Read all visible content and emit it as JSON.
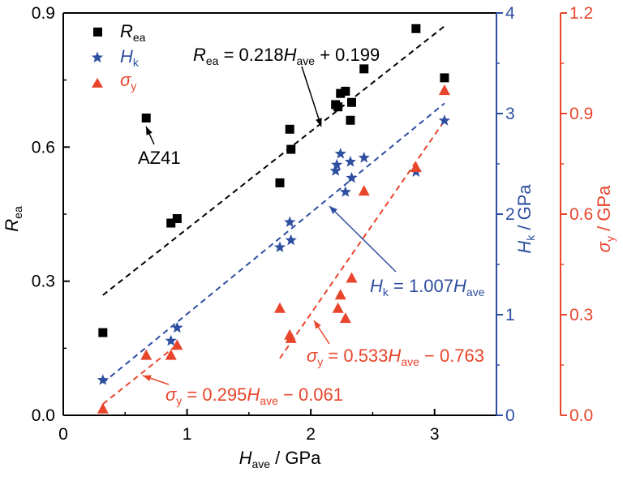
{
  "chart_data": {
    "type": "scatter",
    "x_axis": {
      "label_main": "H",
      "label_sub": "ave",
      "label_unit": " / GPa",
      "range": [
        0,
        3.5
      ],
      "ticks": [
        0,
        1,
        2,
        3
      ],
      "tick_labels": [
        "0",
        "1",
        "2",
        "3"
      ]
    },
    "y_axes": {
      "left": {
        "label_main": "R",
        "label_sub": "ea",
        "label_unit": "",
        "range": [
          0,
          0.9
        ],
        "ticks": [
          0,
          0.3,
          0.6,
          0.9
        ],
        "tick_labels": [
          "0.0",
          "0.3",
          "0.6",
          "0.9"
        ],
        "color": "#000000"
      },
      "right1": {
        "label_main": "H",
        "label_sub": "k",
        "label_unit": " / GPa",
        "range": [
          0,
          4
        ],
        "ticks": [
          0,
          1,
          2,
          3,
          4
        ],
        "tick_labels": [
          "0",
          "1",
          "2",
          "3",
          "4"
        ],
        "color": "#2e4ea0"
      },
      "right2": {
        "label_main": "σ",
        "label_sub": "y",
        "label_unit": " / GPa",
        "range": [
          0,
          1.2
        ],
        "ticks": [
          0,
          0.3,
          0.6,
          0.9,
          1.2
        ],
        "tick_labels": [
          "0.0",
          "0.3",
          "0.6",
          "0.9",
          "1.2"
        ],
        "color": "#e8452c"
      }
    },
    "series": [
      {
        "name_main": "R",
        "name_sub": "ea",
        "axis": "left",
        "marker": "square",
        "color": "#000000",
        "points": [
          [
            0.32,
            0.185
          ],
          [
            0.67,
            0.665
          ],
          [
            0.87,
            0.43
          ],
          [
            0.92,
            0.44
          ],
          [
            1.75,
            0.52
          ],
          [
            1.83,
            0.64
          ],
          [
            1.84,
            0.595
          ],
          [
            2.2,
            0.695
          ],
          [
            2.22,
            0.69
          ],
          [
            2.24,
            0.72
          ],
          [
            2.28,
            0.725
          ],
          [
            2.32,
            0.66
          ],
          [
            2.33,
            0.7
          ],
          [
            2.43,
            0.775
          ],
          [
            2.85,
            0.865
          ],
          [
            3.08,
            0.755
          ]
        ]
      },
      {
        "name_main": "H",
        "name_sub": "k",
        "axis": "right1",
        "marker": "star",
        "color": "#2e4ea0",
        "points": [
          [
            0.32,
            0.35
          ],
          [
            0.87,
            0.74
          ],
          [
            0.92,
            0.87
          ],
          [
            1.75,
            1.67
          ],
          [
            1.83,
            1.92
          ],
          [
            1.84,
            1.74
          ],
          [
            2.2,
            2.43
          ],
          [
            2.21,
            2.49
          ],
          [
            2.24,
            2.6
          ],
          [
            2.28,
            2.22
          ],
          [
            2.32,
            2.52
          ],
          [
            2.33,
            2.36
          ],
          [
            2.43,
            2.56
          ],
          [
            2.85,
            2.42
          ],
          [
            3.08,
            2.93
          ]
        ]
      },
      {
        "name_main": "σ",
        "name_sub": "y",
        "axis": "right2",
        "marker": "triangle",
        "color": "#e8452c",
        "points": [
          [
            0.32,
            0.02
          ],
          [
            0.67,
            0.18
          ],
          [
            0.87,
            0.18
          ],
          [
            0.92,
            0.21
          ],
          [
            1.75,
            0.32
          ],
          [
            1.83,
            0.24
          ],
          [
            1.84,
            0.23
          ],
          [
            2.22,
            0.32
          ],
          [
            2.24,
            0.36
          ],
          [
            2.28,
            0.29
          ],
          [
            2.33,
            0.41
          ],
          [
            2.43,
            0.67
          ],
          [
            2.85,
            0.74
          ],
          [
            3.08,
            0.97
          ]
        ]
      }
    ],
    "fit_lines": [
      {
        "axis": "left",
        "color": "#000000",
        "slope": 0.218,
        "intercept": 0.199,
        "x": [
          0.32,
          3.08
        ]
      },
      {
        "axis": "right1",
        "color": "#2e4ea0",
        "slope": 1.007,
        "intercept": 0,
        "x": [
          0.32,
          3.08
        ]
      },
      {
        "axis": "right2",
        "color": "#e8452c",
        "slope": 0.295,
        "intercept": -0.061,
        "x": [
          0.32,
          0.92
        ]
      },
      {
        "axis": "right2",
        "color": "#e8452c",
        "slope": 0.533,
        "intercept": -0.763,
        "x": [
          1.75,
          3.08
        ]
      }
    ],
    "annotations": {
      "rea_eq": {
        "a": "R",
        "a_sub": "ea",
        "b": " = 0.218",
        "c": "H",
        "c_sub": "ave",
        "d": " + 0.199"
      },
      "hk_eq": {
        "a": "H",
        "a_sub": "k",
        "b": " = 1.007",
        "c": "H",
        "c_sub": "ave",
        "d": ""
      },
      "sy1_eq": {
        "a": "σ",
        "a_sub": "y",
        "b": " = 0.533",
        "c": "H",
        "c_sub": "ave",
        "d": " − 0.763"
      },
      "sy2_eq": {
        "a": "σ",
        "a_sub": "y",
        "b": " = 0.295",
        "c": "H",
        "c_sub": "ave",
        "d": " − 0.061"
      },
      "az41": "AZ41"
    },
    "legend_position": "top-left",
    "grid": false
  }
}
